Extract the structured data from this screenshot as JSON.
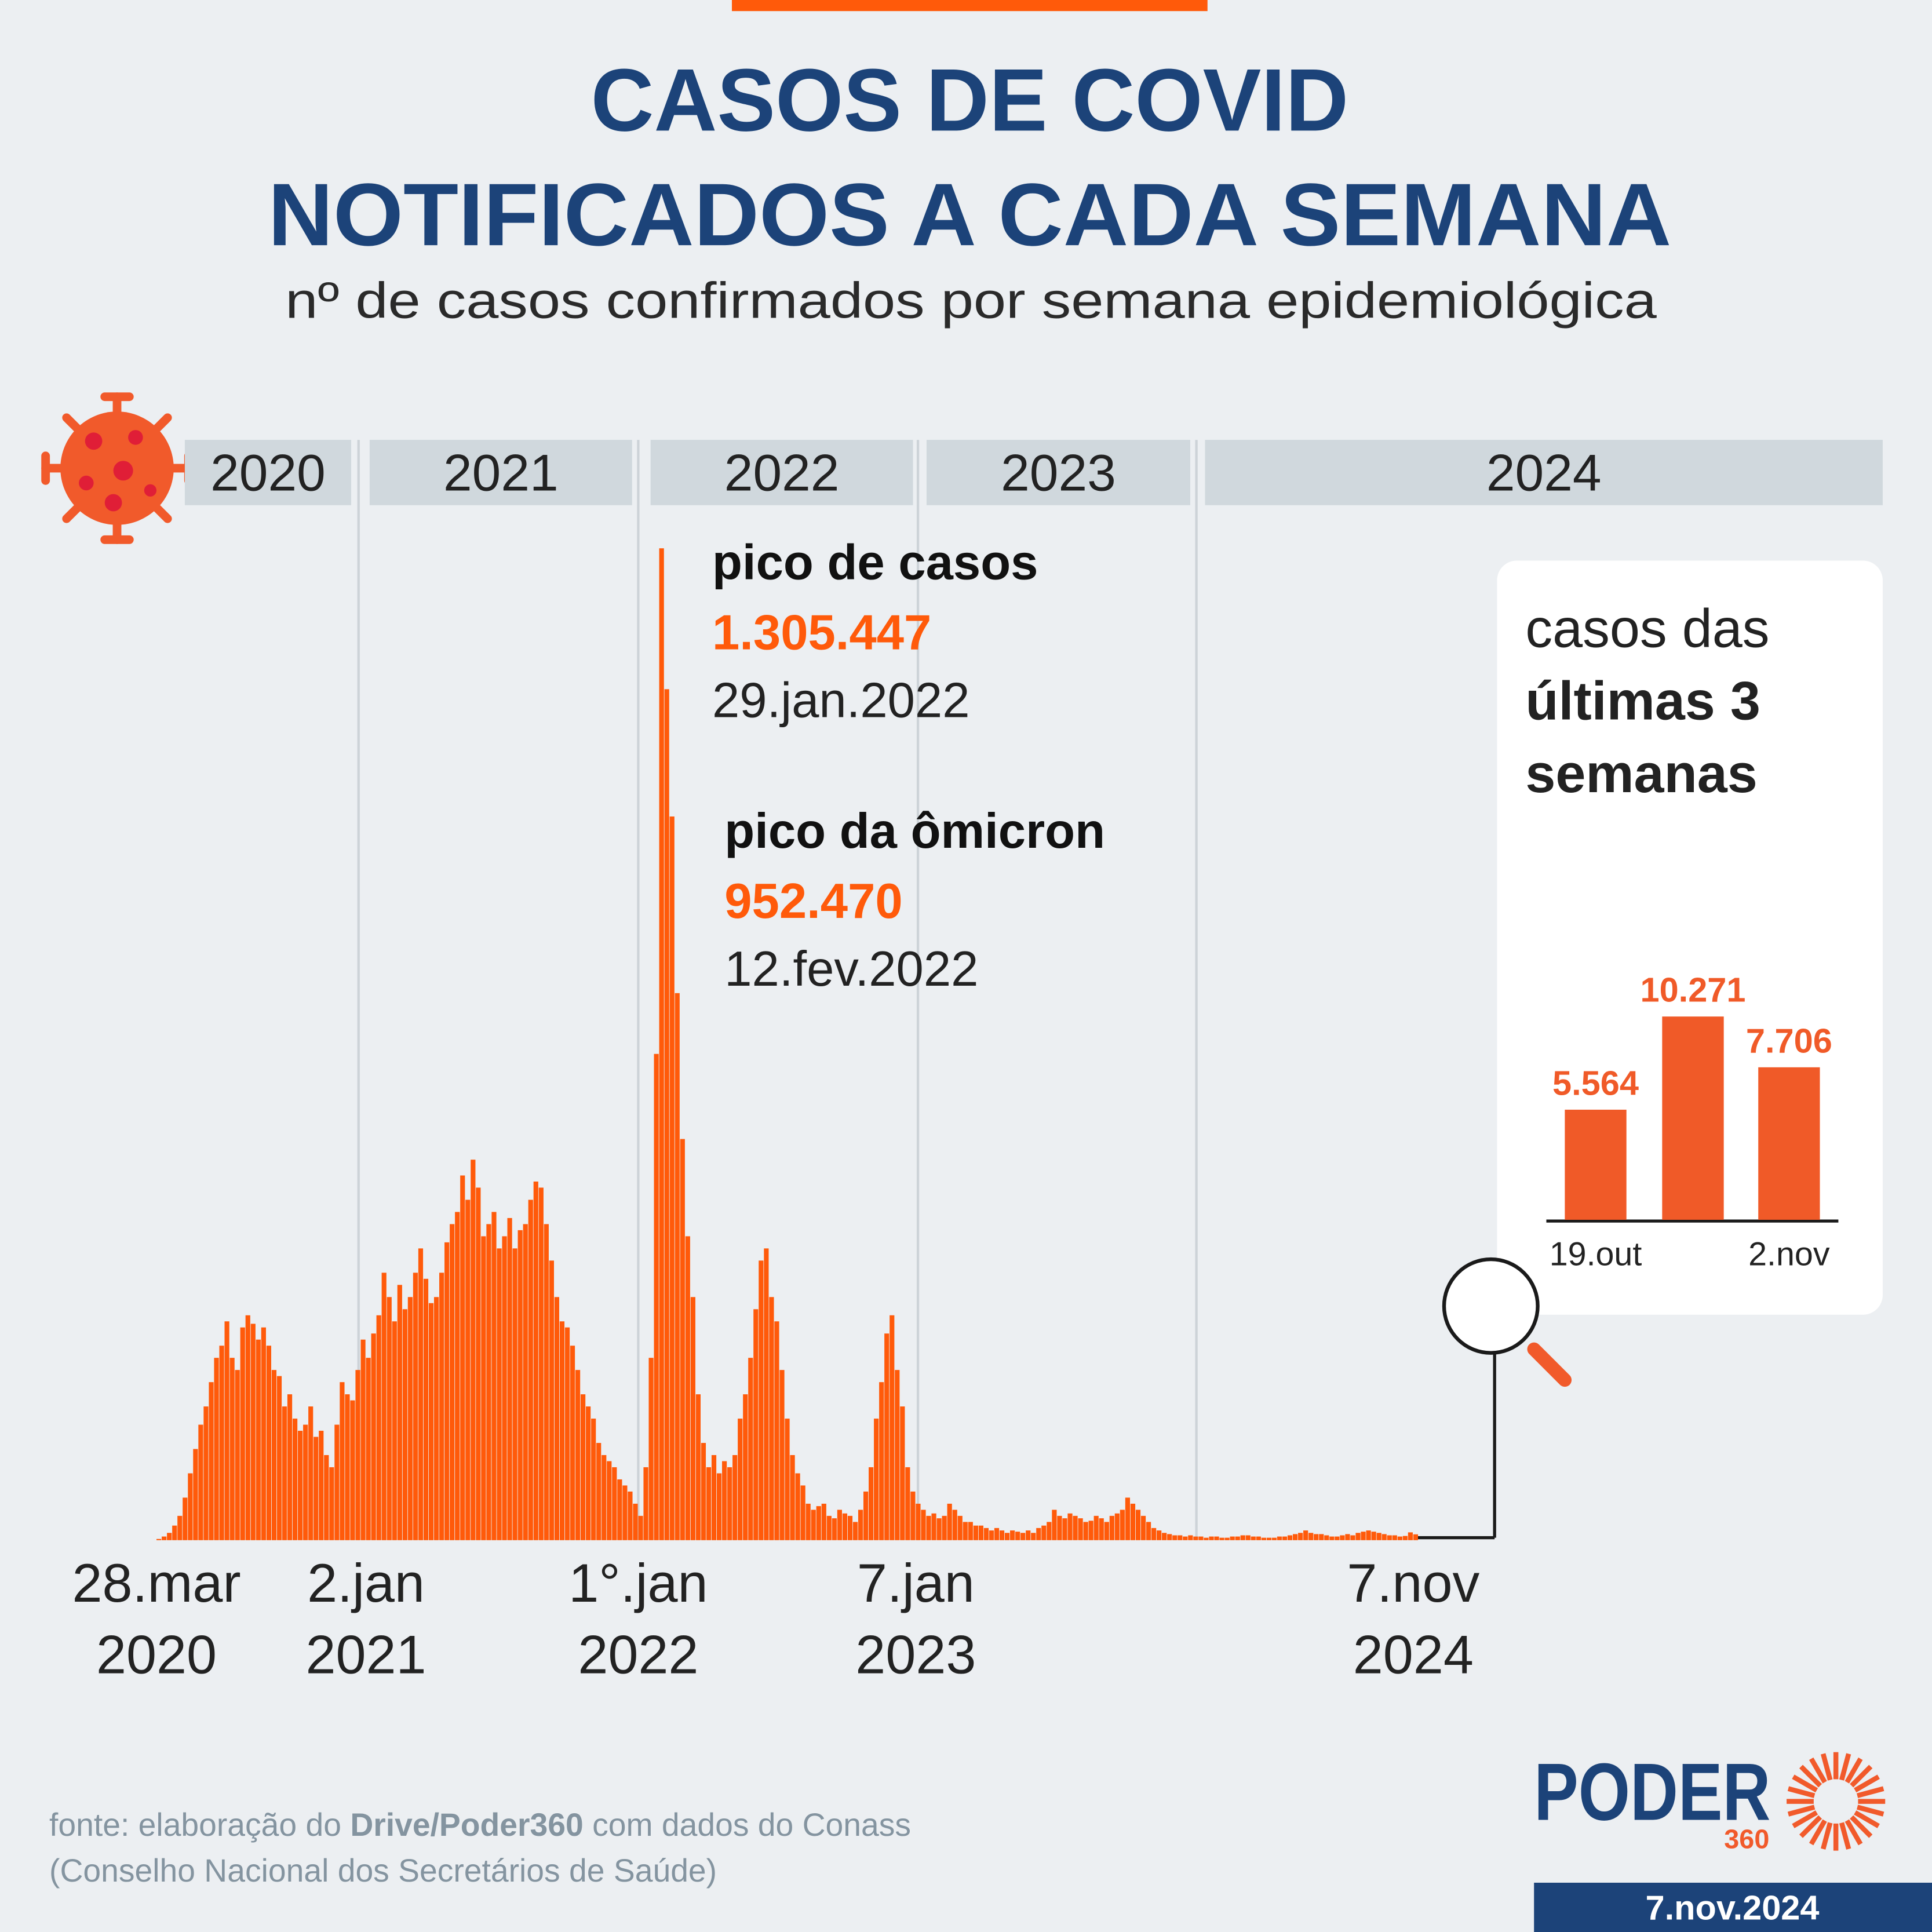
{
  "header": {
    "title_lines": [
      "CASOS DE COVID",
      "NOTIFICADOS A CADA SEMANA"
    ],
    "subtitle": "nº de casos confirmados por semana epidemiológica"
  },
  "years": [
    "2020",
    "2021",
    "2022",
    "2023",
    "2024"
  ],
  "annotations": [
    {
      "title": "pico de casos",
      "value_label": "1.305.447",
      "date": "29.jan.2022"
    },
    {
      "title": "pico da ômicron",
      "value_label": "952.470",
      "date": "12.fev.2022"
    }
  ],
  "chart_data": [
    {
      "type": "bar",
      "color": "#ff5a0a",
      "categories": [
        "28.mar 2020",
        null,
        null,
        null,
        null,
        null,
        null,
        null,
        null,
        null,
        null,
        null,
        null,
        null,
        null,
        null,
        null,
        null,
        null,
        null,
        null,
        null,
        null,
        null,
        null,
        null,
        null,
        null,
        null,
        null,
        null,
        null,
        null,
        null,
        null,
        null,
        null,
        null,
        null,
        null,
        "2.jan 2021",
        null,
        null,
        null,
        null,
        null,
        null,
        null,
        null,
        null,
        null,
        null,
        null,
        null,
        null,
        null,
        null,
        null,
        null,
        null,
        null,
        null,
        null,
        null,
        null,
        null,
        null,
        null,
        null,
        null,
        null,
        null,
        null,
        null,
        null,
        null,
        null,
        null,
        null,
        null,
        null,
        null,
        null,
        null,
        null,
        null,
        null,
        null,
        null,
        null,
        null,
        null,
        "1°.jan 2022",
        null,
        null,
        null,
        null,
        null,
        null,
        null,
        null,
        null,
        null,
        null,
        null,
        null,
        null,
        null,
        null,
        null,
        null,
        null,
        null,
        null,
        null,
        null,
        null,
        null,
        null,
        null,
        null,
        null,
        null,
        null,
        null,
        null,
        null,
        null,
        null,
        null,
        null,
        null,
        null,
        null,
        null,
        null,
        null,
        null,
        null,
        null,
        null,
        null,
        null,
        null,
        null,
        "7.jan 2023",
        null,
        null,
        null,
        null,
        null,
        null,
        null,
        null,
        null,
        null,
        null,
        null,
        null,
        null,
        null,
        null,
        null,
        null,
        null,
        null,
        null,
        null,
        null,
        null,
        null,
        null,
        null,
        null,
        null,
        null,
        null,
        null,
        null,
        null,
        null,
        null,
        null,
        null,
        null,
        null,
        null,
        null,
        null,
        null,
        null,
        null,
        null,
        null,
        null,
        null,
        null,
        null,
        null,
        null,
        null,
        null,
        null,
        null,
        null,
        null,
        null,
        null,
        null,
        null,
        null,
        null,
        null,
        null,
        null,
        null,
        null,
        null,
        null,
        null,
        null,
        null,
        null,
        null,
        null,
        null,
        null,
        null,
        null,
        null,
        null,
        null,
        null,
        null,
        null,
        null,
        null,
        null,
        null,
        null,
        "7.nov 2024"
      ],
      "values": [
        1600,
        4800,
        9600,
        19200,
        32000,
        56000,
        88000,
        120000,
        152000,
        176000,
        208000,
        240000,
        256000,
        288000,
        240000,
        224000,
        280000,
        296000,
        284800,
        264000,
        280000,
        256000,
        224000,
        216000,
        176000,
        192000,
        160000,
        144000,
        152000,
        176000,
        136000,
        144000,
        112000,
        96000,
        152000,
        208000,
        192000,
        184000,
        224000,
        264000,
        240000,
        272000,
        296000,
        352000,
        320000,
        288000,
        336000,
        304000,
        320000,
        352000,
        384000,
        344000,
        312000,
        320000,
        352000,
        392000,
        416000,
        432000,
        480000,
        448000,
        500800,
        464000,
        400000,
        416000,
        432000,
        384000,
        400000,
        424000,
        384000,
        408000,
        416000,
        448000,
        472000,
        464000,
        416000,
        368000,
        320000,
        288000,
        280000,
        256000,
        224000,
        192000,
        176000,
        160000,
        128000,
        112000,
        104000,
        96000,
        80000,
        72000,
        64000,
        48000,
        32000,
        96000,
        240000,
        640000,
        1305447,
        1120000,
        952470,
        720000,
        528000,
        400000,
        320000,
        192000,
        128000,
        96000,
        112000,
        88000,
        104000,
        96000,
        112000,
        160000,
        192000,
        240000,
        304000,
        368000,
        384000,
        320000,
        288000,
        224000,
        160000,
        112000,
        88000,
        72000,
        48000,
        40000,
        44800,
        48000,
        32000,
        28800,
        40000,
        35200,
        32000,
        24000,
        40000,
        64000,
        96000,
        160000,
        208000,
        272000,
        296000,
        224000,
        176000,
        96000,
        64000,
        48000,
        40000,
        32000,
        35200,
        28800,
        32000,
        48000,
        40000,
        32000,
        24000,
        24000,
        19200,
        19200,
        16000,
        12800,
        16000,
        12800,
        9600,
        12800,
        11200,
        9600,
        12800,
        9600,
        16000,
        19200,
        24000,
        40000,
        32000,
        28800,
        35200,
        32000,
        28800,
        24000,
        25600,
        32000,
        28800,
        24000,
        32000,
        35200,
        40000,
        56000,
        48000,
        40000,
        32000,
        24000,
        16000,
        12800,
        9600,
        8000,
        6400,
        6400,
        4800,
        6400,
        4800,
        4800,
        3200,
        4800,
        4800,
        3200,
        3200,
        4800,
        4800,
        6400,
        6400,
        4800,
        4800,
        3200,
        3200,
        3200,
        4800,
        4800,
        6400,
        8000,
        9600,
        12800,
        9600,
        8000,
        8000,
        6400,
        4800,
        4800,
        6400,
        8000,
        6400,
        9600,
        11200,
        12800,
        11200,
        9600,
        8000,
        6400,
        6400,
        4800,
        5564,
        10271,
        7706
      ]
    },
    {
      "type": "bar",
      "title_lines": [
        "casos das",
        "últimas 3",
        "semanas"
      ],
      "color": "#f05a28",
      "categories": [
        "19.out",
        null,
        "2.nov"
      ],
      "values": [
        5564,
        10271,
        7706
      ],
      "value_labels": [
        "5.564",
        "10.271",
        "7.706"
      ]
    }
  ],
  "source": {
    "parts": [
      "fonte: elaboração do ",
      "Drive/Poder360",
      " com dados do Conass"
    ],
    "line2": "(Conselho Nacional dos Secretários de Saúde)"
  },
  "logo": {
    "name": "PODER",
    "number": "360"
  },
  "date": "7.nov.2024"
}
